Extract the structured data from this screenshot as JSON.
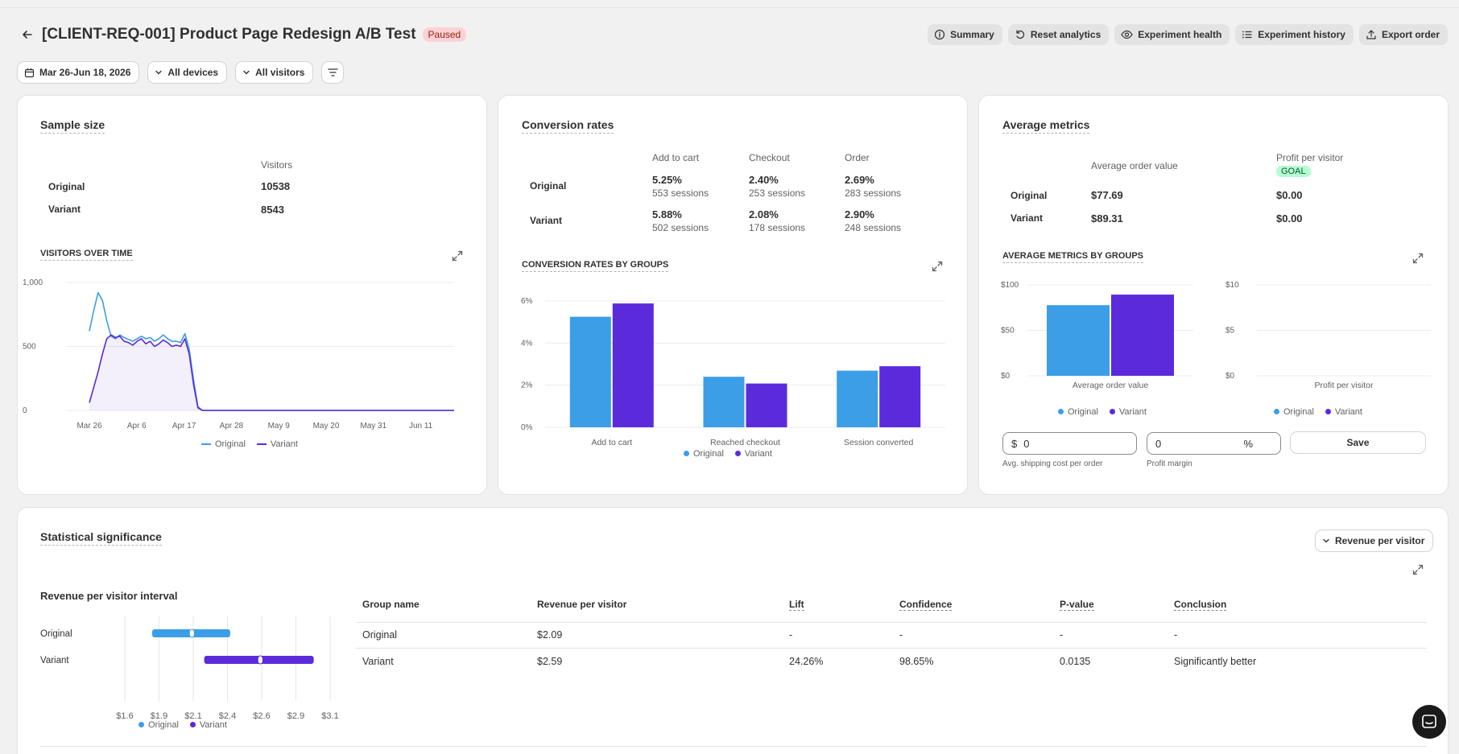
{
  "header": {
    "title": "[CLIENT-REQ-001] Product Page Redesign A/B Test",
    "status": "Paused",
    "actions": [
      "Summary",
      "Reset analytics",
      "Experiment health",
      "Experiment history",
      "Export order"
    ]
  },
  "filters": {
    "date_range": "Mar 26-Jun 18, 2026",
    "devices": "All devices",
    "visitors": "All visitors"
  },
  "sample_size": {
    "title": "Sample size",
    "column": "Visitors",
    "rows": [
      {
        "group": "Original",
        "visitors": "10538"
      },
      {
        "group": "Variant",
        "visitors": "8543"
      }
    ],
    "chart_title": "VISITORS OVER TIME",
    "chart_data": {
      "type": "line",
      "y_ticks": [
        "1,000",
        "500",
        "0"
      ],
      "ylim": [
        0,
        1000
      ],
      "x_ticks": [
        "Mar 26",
        "Apr 6",
        "Apr 17",
        "Apr 28",
        "May 9",
        "May 20",
        "May 31",
        "Jun 11"
      ],
      "series": [
        {
          "name": "Original",
          "color": "#3b9ee6",
          "values": [
            620,
            780,
            920,
            860,
            700,
            580,
            560,
            590,
            570,
            555,
            540,
            560,
            580,
            560,
            570,
            540,
            560,
            590,
            560,
            540,
            540,
            530,
            600,
            480,
            240,
            30,
            0,
            0,
            0,
            0,
            0,
            0,
            0,
            0,
            0,
            0,
            0,
            0,
            0,
            0,
            0,
            0,
            0,
            0,
            0,
            0,
            0,
            0,
            0,
            0,
            0,
            0,
            0,
            0,
            0,
            0,
            0,
            0,
            0,
            0,
            0,
            0,
            0,
            0,
            0,
            0,
            0,
            0,
            0,
            0,
            0,
            0,
            0,
            0,
            0,
            0,
            0,
            0,
            0,
            0,
            0,
            0,
            0,
            0,
            0
          ]
        },
        {
          "name": "Variant",
          "color": "#5b2bdb",
          "values": [
            60,
            180,
            300,
            440,
            560,
            590,
            570,
            580,
            540,
            530,
            510,
            540,
            560,
            520,
            540,
            500,
            520,
            550,
            530,
            500,
            510,
            500,
            560,
            440,
            200,
            20,
            0,
            0,
            0,
            0,
            0,
            0,
            0,
            0,
            0,
            0,
            0,
            0,
            0,
            0,
            0,
            0,
            0,
            0,
            0,
            0,
            0,
            0,
            0,
            0,
            0,
            0,
            0,
            0,
            0,
            0,
            0,
            0,
            0,
            0,
            0,
            0,
            0,
            0,
            0,
            0,
            0,
            0,
            0,
            0,
            0,
            0,
            0,
            0,
            0,
            0,
            0,
            0,
            0,
            0,
            0,
            0,
            0,
            0,
            0
          ]
        }
      ]
    },
    "legend": [
      "Original",
      "Variant"
    ]
  },
  "conversion": {
    "title": "Conversion rates",
    "columns": [
      "Add to cart",
      "Checkout",
      "Order"
    ],
    "rows": [
      {
        "group": "Original",
        "cells": [
          {
            "rate": "5.25%",
            "sessions": "553 sessions"
          },
          {
            "rate": "2.40%",
            "sessions": "253 sessions"
          },
          {
            "rate": "2.69%",
            "sessions": "283 sessions"
          }
        ]
      },
      {
        "group": "Variant",
        "cells": [
          {
            "rate": "5.88%",
            "sessions": "502 sessions"
          },
          {
            "rate": "2.08%",
            "sessions": "178 sessions"
          },
          {
            "rate": "2.90%",
            "sessions": "248 sessions"
          }
        ]
      }
    ],
    "chart_title": "CONVERSION RATES BY GROUPS",
    "chart_data": {
      "type": "bar",
      "categories": [
        "Add to cart",
        "Reached checkout",
        "Session converted"
      ],
      "y_ticks": [
        "6%",
        "4%",
        "2%",
        "0%"
      ],
      "ylim": [
        0,
        6
      ],
      "series": [
        {
          "name": "Original",
          "color": "#3b9ee6",
          "values": [
            5.25,
            2.4,
            2.69
          ]
        },
        {
          "name": "Variant",
          "color": "#5b2bdb",
          "values": [
            5.88,
            2.08,
            2.9
          ]
        }
      ]
    },
    "legend": [
      "Original",
      "Variant"
    ]
  },
  "average": {
    "title": "Average metrics",
    "columns": [
      "Average order value",
      "Profit per visitor"
    ],
    "goal_badge": "GOAL",
    "rows": [
      {
        "group": "Original",
        "aov": "$77.69",
        "ppv": "$0.00"
      },
      {
        "group": "Variant",
        "aov": "$89.31",
        "ppv": "$0.00"
      }
    ],
    "chart_title": "AVERAGE METRICS BY GROUPS",
    "chart_data": [
      {
        "type": "bar",
        "categories": [
          "Average order value"
        ],
        "y_ticks": [
          "$100",
          "$50",
          "$0"
        ],
        "ylim": [
          0,
          100
        ],
        "series": [
          {
            "name": "Original",
            "color": "#3b9ee6",
            "values": [
              77.69
            ]
          },
          {
            "name": "Variant",
            "color": "#5b2bdb",
            "values": [
              89.31
            ]
          }
        ]
      },
      {
        "type": "bar",
        "categories": [
          "Profit per visitor"
        ],
        "y_ticks": [
          "$10",
          "$5",
          "$0"
        ],
        "ylim": [
          0,
          10
        ],
        "series": [
          {
            "name": "Original",
            "color": "#3b9ee6",
            "values": [
              0
            ]
          },
          {
            "name": "Variant",
            "color": "#5b2bdb",
            "values": [
              0
            ]
          }
        ]
      }
    ],
    "legend": [
      "Original",
      "Variant"
    ],
    "shipping": {
      "prefix": "$",
      "value": "0",
      "label": "Avg. shipping cost per order"
    },
    "margin": {
      "value": "0",
      "suffix": "%",
      "label": "Profit margin"
    },
    "save_label": "Save"
  },
  "significance": {
    "title": "Statistical significance",
    "metric_dropdown": "Revenue per visitor",
    "interval_title": "Revenue per visitor interval",
    "interval_chart": {
      "type": "interval",
      "x_ticks": [
        "$1.6",
        "$1.9",
        "$2.1",
        "$2.4",
        "$2.6",
        "$2.9",
        "$3.1"
      ],
      "xlim": [
        1.6,
        3.1
      ],
      "series": [
        {
          "name": "Original",
          "color": "#3b9ee6",
          "low": 1.8,
          "mid": 2.09,
          "high": 2.37
        },
        {
          "name": "Variant",
          "color": "#5b2bdb",
          "low": 2.18,
          "mid": 2.59,
          "high": 2.98
        }
      ]
    },
    "legend": [
      "Original",
      "Variant"
    ],
    "table": {
      "headers": [
        "Group name",
        "Revenue per visitor",
        "Lift",
        "Confidence",
        "P-value",
        "Conclusion"
      ],
      "rows": [
        [
          "Original",
          "$2.09",
          "-",
          "-",
          "-",
          "-"
        ],
        [
          "Variant",
          "$2.59",
          "24.26%",
          "98.65%",
          "0.0135",
          "Significantly better"
        ]
      ]
    }
  }
}
